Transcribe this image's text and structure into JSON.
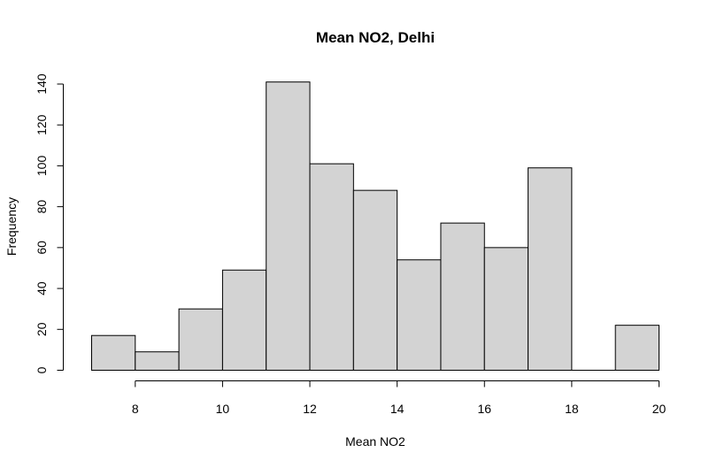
{
  "chart_data": {
    "type": "bar",
    "title": "Mean NO2, Delhi",
    "xlabel": "Mean NO2",
    "ylabel": "Frequency",
    "bins": [
      {
        "x0": 7,
        "x1": 8,
        "count": 17
      },
      {
        "x0": 8,
        "x1": 9,
        "count": 9
      },
      {
        "x0": 9,
        "x1": 10,
        "count": 30
      },
      {
        "x0": 10,
        "x1": 11,
        "count": 49
      },
      {
        "x0": 11,
        "x1": 12,
        "count": 141
      },
      {
        "x0": 12,
        "x1": 13,
        "count": 101
      },
      {
        "x0": 13,
        "x1": 14,
        "count": 88
      },
      {
        "x0": 14,
        "x1": 15,
        "count": 54
      },
      {
        "x0": 15,
        "x1": 16,
        "count": 72
      },
      {
        "x0": 16,
        "x1": 17,
        "count": 60
      },
      {
        "x0": 17,
        "x1": 18,
        "count": 99
      },
      {
        "x0": 18,
        "x1": 19,
        "count": 0
      },
      {
        "x0": 19,
        "x1": 20,
        "count": 22
      }
    ],
    "xticks": [
      "8",
      "10",
      "12",
      "14",
      "16",
      "18",
      "20"
    ],
    "yticks": [
      "0",
      "20",
      "40",
      "60",
      "80",
      "100",
      "120",
      "140"
    ],
    "xlim": [
      7,
      20
    ],
    "ylim": [
      0,
      140
    ],
    "bar_color": "#d3d3d3",
    "edge_color": "#000000",
    "grid": false,
    "legend": "none"
  }
}
